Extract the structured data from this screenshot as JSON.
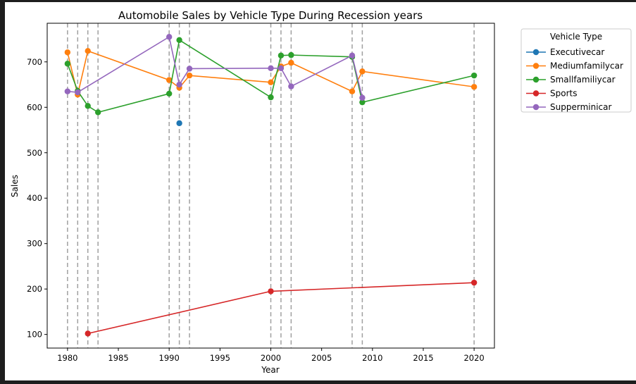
{
  "chart_data": {
    "type": "line",
    "title": "Automobile Sales by Vehicle Type During Recession years",
    "xlabel": "Year",
    "ylabel": "Sales",
    "xlim": [
      1978,
      2022
    ],
    "ylim": [
      70,
      785
    ],
    "xticks": [
      1980,
      1985,
      1990,
      1995,
      2000,
      2005,
      2010,
      2015,
      2020
    ],
    "yticks": [
      100,
      200,
      300,
      400,
      500,
      600,
      700
    ],
    "recession_years": [
      1980,
      1981,
      1982,
      1983,
      1990,
      1991,
      1992,
      2000,
      2001,
      2002,
      2008,
      2009,
      2020
    ],
    "grid": false,
    "legend": {
      "title": "Vehicle Type",
      "position": "outside-right"
    },
    "series": [
      {
        "name": "Executivecar",
        "color": "#1f77b4",
        "x": [
          1991
        ],
        "y": [
          565
        ]
      },
      {
        "name": "Mediumfamilycar",
        "color": "#ff7f0e",
        "x": [
          1980,
          1981,
          1982,
          1990,
          1991,
          1992,
          2000,
          2001,
          2002,
          2008,
          2009,
          2020
        ],
        "y": [
          721,
          628,
          724,
          660,
          643,
          670,
          655,
          690,
          698,
          635,
          679,
          645
        ]
      },
      {
        "name": "Smallfamiliycar",
        "color": "#2ca02c",
        "x": [
          1980,
          1981,
          1982,
          1983,
          1990,
          1991,
          2000,
          2001,
          2002,
          2008,
          2009,
          2020
        ],
        "y": [
          696,
          636,
          603,
          589,
          630,
          748,
          622,
          714,
          715,
          711,
          611,
          670
        ]
      },
      {
        "name": "Sports",
        "color": "#d62728",
        "x": [
          1982,
          2000,
          2020
        ],
        "y": [
          102,
          195,
          214
        ]
      },
      {
        "name": "Supperminicar",
        "color": "#9467bd",
        "x": [
          1980,
          1981,
          1990,
          1991,
          1992,
          2000,
          2001,
          2002,
          2008,
          2009
        ],
        "y": [
          635,
          633,
          755,
          650,
          685,
          686,
          686,
          646,
          714,
          621
        ]
      }
    ]
  }
}
